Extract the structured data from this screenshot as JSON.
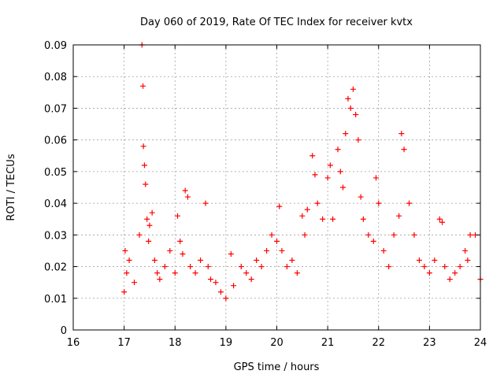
{
  "chart_data": {
    "type": "scatter",
    "title": "Day 060 of 2019, Rate Of TEC Index for receiver kvtx",
    "xlabel": "GPS time / hours",
    "ylabel": "ROTI / TECUs",
    "xlim": [
      16,
      24
    ],
    "ylim": [
      0,
      0.09
    ],
    "x_ticks": [
      "16",
      "17",
      "18",
      "19",
      "20",
      "21",
      "22",
      "23",
      "24"
    ],
    "y_ticks": [
      "0",
      "0.01",
      "0.02",
      "0.03",
      "0.04",
      "0.05",
      "0.06",
      "0.07",
      "0.08",
      "0.09"
    ],
    "grid": true,
    "marker": "+",
    "series_color": "#ff0000",
    "series": [
      {
        "name": "kvtx ROTI",
        "x": [
          17.0,
          17.02,
          17.05,
          17.1,
          17.2,
          17.3,
          17.35,
          17.37,
          17.38,
          17.4,
          17.42,
          17.45,
          17.48,
          17.5,
          17.55,
          17.6,
          17.65,
          17.7,
          17.8,
          17.9,
          18.0,
          18.05,
          18.1,
          18.15,
          18.2,
          18.25,
          18.3,
          18.4,
          18.5,
          18.6,
          18.65,
          18.7,
          18.8,
          18.9,
          19.0,
          19.1,
          19.15,
          19.3,
          19.4,
          19.5,
          19.6,
          19.7,
          19.8,
          19.9,
          20.0,
          20.05,
          20.1,
          20.2,
          20.3,
          20.4,
          20.5,
          20.55,
          20.6,
          20.7,
          20.75,
          20.8,
          20.9,
          21.0,
          21.05,
          21.1,
          21.2,
          21.25,
          21.3,
          21.35,
          21.4,
          21.45,
          21.5,
          21.55,
          21.6,
          21.65,
          21.7,
          21.8,
          21.9,
          21.95,
          22.0,
          22.1,
          22.2,
          22.3,
          22.4,
          22.45,
          22.5,
          22.6,
          22.7,
          22.8,
          22.9,
          23.0,
          23.1,
          23.2,
          23.25,
          23.3,
          23.4,
          23.5,
          23.6,
          23.7,
          23.75,
          23.8,
          23.9,
          24.0
        ],
        "y": [
          0.012,
          0.025,
          0.018,
          0.022,
          0.015,
          0.03,
          0.09,
          0.077,
          0.058,
          0.052,
          0.046,
          0.035,
          0.028,
          0.033,
          0.037,
          0.022,
          0.018,
          0.016,
          0.02,
          0.025,
          0.018,
          0.036,
          0.028,
          0.024,
          0.044,
          0.042,
          0.02,
          0.018,
          0.022,
          0.04,
          0.02,
          0.016,
          0.015,
          0.012,
          0.01,
          0.024,
          0.014,
          0.02,
          0.018,
          0.016,
          0.022,
          0.02,
          0.025,
          0.03,
          0.028,
          0.039,
          0.025,
          0.02,
          0.022,
          0.018,
          0.036,
          0.03,
          0.038,
          0.055,
          0.049,
          0.04,
          0.035,
          0.048,
          0.052,
          0.035,
          0.057,
          0.05,
          0.045,
          0.062,
          0.073,
          0.07,
          0.076,
          0.068,
          0.06,
          0.042,
          0.035,
          0.03,
          0.028,
          0.048,
          0.04,
          0.025,
          0.02,
          0.03,
          0.036,
          0.062,
          0.057,
          0.04,
          0.03,
          0.022,
          0.02,
          0.018,
          0.022,
          0.035,
          0.034,
          0.02,
          0.016,
          0.018,
          0.02,
          0.025,
          0.022,
          0.03,
          0.03,
          0.016
        ]
      }
    ]
  }
}
